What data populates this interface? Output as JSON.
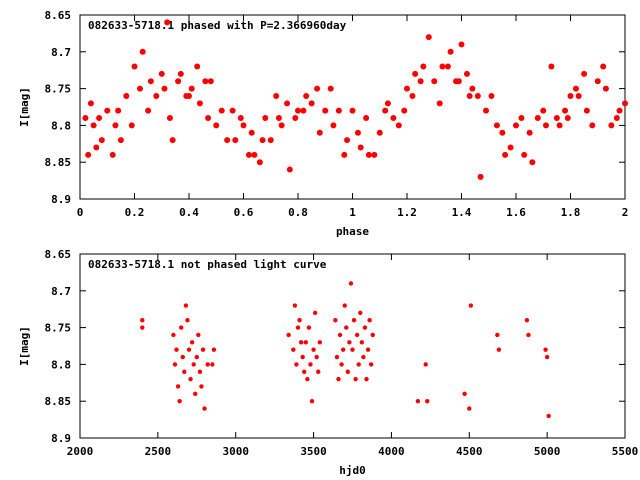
{
  "chart_data": [
    {
      "type": "scatter",
      "title": "082633-5718.1 phased with P=2.366960day",
      "xlabel": "phase",
      "ylabel": "I[mag]",
      "xlim": [
        0,
        2
      ],
      "ylim": [
        8.9,
        8.65
      ],
      "y_inverted": true,
      "x_ticks": [
        0,
        0.2,
        0.4,
        0.6,
        0.8,
        1,
        1.2,
        1.4,
        1.6,
        1.8,
        2
      ],
      "x_tick_labels": [
        "0",
        "0.2",
        "0.4",
        "0.6",
        "0.8",
        "1",
        "1.2",
        "1.4",
        "1.6",
        "1.8",
        "2"
      ],
      "y_ticks": [
        8.65,
        8.7,
        8.75,
        8.8,
        8.85,
        8.9
      ],
      "y_tick_labels": [
        "8.65",
        "8.7",
        "8.75",
        "8.8",
        "8.85",
        "8.9"
      ],
      "marker_color": "#ff0000",
      "grid": false,
      "series": [
        {
          "points": [
            [
              0.02,
              8.79
            ],
            [
              0.03,
              8.84
            ],
            [
              0.04,
              8.77
            ],
            [
              0.05,
              8.8
            ],
            [
              0.06,
              8.83
            ],
            [
              0.07,
              8.79
            ],
            [
              0.08,
              8.82
            ],
            [
              0.1,
              8.78
            ],
            [
              0.12,
              8.84
            ],
            [
              0.13,
              8.8
            ],
            [
              0.14,
              8.78
            ],
            [
              0.15,
              8.82
            ],
            [
              0.17,
              8.76
            ],
            [
              0.19,
              8.8
            ],
            [
              0.2,
              8.72
            ],
            [
              0.22,
              8.75
            ],
            [
              0.23,
              8.7
            ],
            [
              0.25,
              8.78
            ],
            [
              0.26,
              8.74
            ],
            [
              0.28,
              8.76
            ],
            [
              0.3,
              8.73
            ],
            [
              0.31,
              8.75
            ],
            [
              0.32,
              8.66
            ],
            [
              0.33,
              8.79
            ],
            [
              0.34,
              8.82
            ],
            [
              0.36,
              8.74
            ],
            [
              0.37,
              8.73
            ],
            [
              0.39,
              8.76
            ],
            [
              0.4,
              8.76
            ],
            [
              0.41,
              8.75
            ],
            [
              0.43,
              8.72
            ],
            [
              0.44,
              8.77
            ],
            [
              0.46,
              8.74
            ],
            [
              0.47,
              8.79
            ],
            [
              0.48,
              8.74
            ],
            [
              0.5,
              8.8
            ],
            [
              0.52,
              8.78
            ],
            [
              0.54,
              8.82
            ],
            [
              0.56,
              8.78
            ],
            [
              0.57,
              8.82
            ],
            [
              0.59,
              8.79
            ],
            [
              0.6,
              8.8
            ],
            [
              0.62,
              8.84
            ],
            [
              0.63,
              8.81
            ],
            [
              0.64,
              8.84
            ],
            [
              0.66,
              8.85
            ],
            [
              0.67,
              8.82
            ],
            [
              0.68,
              8.79
            ],
            [
              0.7,
              8.82
            ],
            [
              0.72,
              8.76
            ],
            [
              0.73,
              8.79
            ],
            [
              0.74,
              8.8
            ],
            [
              0.76,
              8.77
            ],
            [
              0.77,
              8.86
            ],
            [
              0.79,
              8.79
            ],
            [
              0.8,
              8.78
            ],
            [
              0.82,
              8.78
            ],
            [
              0.83,
              8.76
            ],
            [
              0.85,
              8.77
            ],
            [
              0.87,
              8.75
            ],
            [
              0.88,
              8.81
            ],
            [
              0.9,
              8.78
            ],
            [
              0.92,
              8.75
            ],
            [
              0.93,
              8.8
            ],
            [
              0.95,
              8.78
            ],
            [
              0.97,
              8.84
            ],
            [
              0.98,
              8.82
            ],
            [
              1.0,
              8.78
            ],
            [
              1.02,
              8.81
            ],
            [
              1.03,
              8.83
            ],
            [
              1.05,
              8.79
            ],
            [
              1.06,
              8.84
            ],
            [
              1.08,
              8.84
            ],
            [
              1.1,
              8.81
            ],
            [
              1.12,
              8.78
            ],
            [
              1.13,
              8.77
            ],
            [
              1.15,
              8.79
            ],
            [
              1.17,
              8.8
            ],
            [
              1.19,
              8.78
            ],
            [
              1.2,
              8.75
            ],
            [
              1.22,
              8.76
            ],
            [
              1.23,
              8.73
            ],
            [
              1.25,
              8.74
            ],
            [
              1.26,
              8.72
            ],
            [
              1.28,
              8.68
            ],
            [
              1.3,
              8.74
            ],
            [
              1.32,
              8.77
            ],
            [
              1.33,
              8.72
            ],
            [
              1.35,
              8.72
            ],
            [
              1.36,
              8.7
            ],
            [
              1.38,
              8.74
            ],
            [
              1.39,
              8.74
            ],
            [
              1.4,
              8.69
            ],
            [
              1.42,
              8.73
            ],
            [
              1.43,
              8.76
            ],
            [
              1.44,
              8.75
            ],
            [
              1.46,
              8.76
            ],
            [
              1.47,
              8.87
            ],
            [
              1.49,
              8.78
            ],
            [
              1.51,
              8.76
            ],
            [
              1.53,
              8.8
            ],
            [
              1.55,
              8.81
            ],
            [
              1.56,
              8.84
            ],
            [
              1.58,
              8.83
            ],
            [
              1.6,
              8.8
            ],
            [
              1.62,
              8.79
            ],
            [
              1.63,
              8.84
            ],
            [
              1.65,
              8.81
            ],
            [
              1.66,
              8.85
            ],
            [
              1.68,
              8.79
            ],
            [
              1.7,
              8.78
            ],
            [
              1.71,
              8.8
            ],
            [
              1.73,
              8.72
            ],
            [
              1.75,
              8.79
            ],
            [
              1.76,
              8.8
            ],
            [
              1.78,
              8.78
            ],
            [
              1.79,
              8.79
            ],
            [
              1.8,
              8.76
            ],
            [
              1.82,
              8.75
            ],
            [
              1.83,
              8.76
            ],
            [
              1.85,
              8.73
            ],
            [
              1.86,
              8.78
            ],
            [
              1.88,
              8.8
            ],
            [
              1.9,
              8.74
            ],
            [
              1.92,
              8.72
            ],
            [
              1.93,
              8.75
            ],
            [
              1.95,
              8.8
            ],
            [
              1.97,
              8.79
            ],
            [
              1.98,
              8.78
            ],
            [
              2.0,
              8.77
            ]
          ]
        }
      ]
    },
    {
      "type": "scatter",
      "title": "082633-5718.1 not phased light curve",
      "xlabel": "hjd0",
      "ylabel": "I[mag]",
      "xlim": [
        2000,
        5500
      ],
      "ylim": [
        8.9,
        8.65
      ],
      "y_inverted": true,
      "x_ticks": [
        2000,
        2500,
        3000,
        3500,
        4000,
        4500,
        5000,
        5500
      ],
      "x_tick_labels": [
        "2000",
        "2500",
        "3000",
        "3500",
        "4000",
        "4500",
        "5000",
        "5500"
      ],
      "y_ticks": [
        8.65,
        8.7,
        8.75,
        8.8,
        8.85,
        8.9
      ],
      "y_tick_labels": [
        "8.65",
        "8.7",
        "8.75",
        "8.8",
        "8.85",
        "8.9"
      ],
      "marker_color": "#ff0000",
      "grid": false,
      "series": [
        {
          "points": [
            [
              2400,
              8.74
            ],
            [
              2400,
              8.75
            ],
            [
              2600,
              8.76
            ],
            [
              2610,
              8.8
            ],
            [
              2620,
              8.78
            ],
            [
              2630,
              8.83
            ],
            [
              2640,
              8.85
            ],
            [
              2650,
              8.75
            ],
            [
              2660,
              8.79
            ],
            [
              2670,
              8.81
            ],
            [
              2680,
              8.72
            ],
            [
              2690,
              8.74
            ],
            [
              2700,
              8.78
            ],
            [
              2710,
              8.82
            ],
            [
              2720,
              8.77
            ],
            [
              2730,
              8.8
            ],
            [
              2740,
              8.84
            ],
            [
              2750,
              8.79
            ],
            [
              2760,
              8.76
            ],
            [
              2770,
              8.81
            ],
            [
              2780,
              8.83
            ],
            [
              2790,
              8.78
            ],
            [
              2800,
              8.86
            ],
            [
              2820,
              8.8
            ],
            [
              2850,
              8.8
            ],
            [
              2860,
              8.78
            ],
            [
              3340,
              8.76
            ],
            [
              3370,
              8.78
            ],
            [
              3380,
              8.72
            ],
            [
              3390,
              8.8
            ],
            [
              3400,
              8.75
            ],
            [
              3410,
              8.74
            ],
            [
              3420,
              8.77
            ],
            [
              3430,
              8.79
            ],
            [
              3440,
              8.81
            ],
            [
              3450,
              8.77
            ],
            [
              3460,
              8.82
            ],
            [
              3470,
              8.75
            ],
            [
              3480,
              8.8
            ],
            [
              3490,
              8.85
            ],
            [
              3500,
              8.78
            ],
            [
              3510,
              8.73
            ],
            [
              3520,
              8.79
            ],
            [
              3530,
              8.81
            ],
            [
              3540,
              8.77
            ],
            [
              3640,
              8.74
            ],
            [
              3650,
              8.79
            ],
            [
              3660,
              8.82
            ],
            [
              3670,
              8.76
            ],
            [
              3680,
              8.8
            ],
            [
              3690,
              8.78
            ],
            [
              3700,
              8.72
            ],
            [
              3710,
              8.75
            ],
            [
              3720,
              8.81
            ],
            [
              3730,
              8.77
            ],
            [
              3740,
              8.69
            ],
            [
              3750,
              8.78
            ],
            [
              3760,
              8.74
            ],
            [
              3770,
              8.82
            ],
            [
              3780,
              8.76
            ],
            [
              3790,
              8.8
            ],
            [
              3800,
              8.73
            ],
            [
              3810,
              8.77
            ],
            [
              3820,
              8.79
            ],
            [
              3830,
              8.75
            ],
            [
              3840,
              8.82
            ],
            [
              3850,
              8.78
            ],
            [
              3860,
              8.74
            ],
            [
              3870,
              8.8
            ],
            [
              3880,
              8.76
            ],
            [
              4170,
              8.85
            ],
            [
              4220,
              8.8
            ],
            [
              4230,
              8.85
            ],
            [
              4470,
              8.84
            ],
            [
              4500,
              8.86
            ],
            [
              4510,
              8.72
            ],
            [
              4680,
              8.76
            ],
            [
              4690,
              8.78
            ],
            [
              4870,
              8.74
            ],
            [
              4880,
              8.76
            ],
            [
              4990,
              8.78
            ],
            [
              5000,
              8.79
            ],
            [
              5010,
              8.87
            ]
          ]
        }
      ]
    }
  ]
}
